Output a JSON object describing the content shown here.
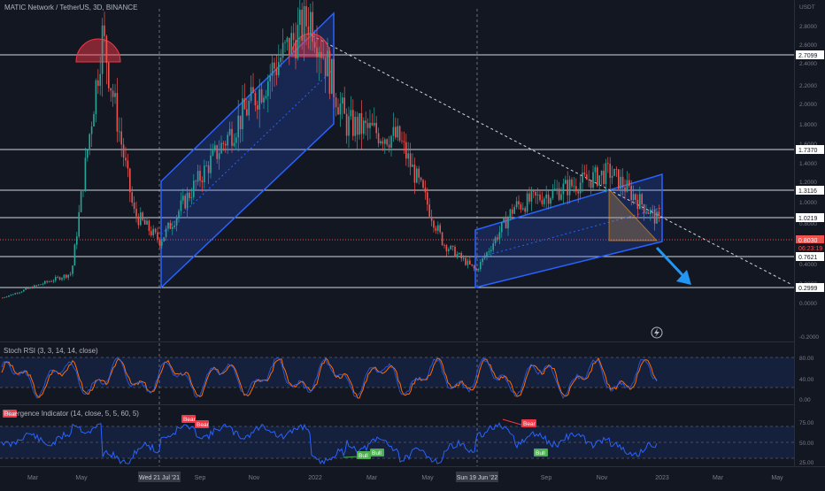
{
  "header": {
    "title": "MATIC Network / TetherUS, 3D, BINANCE"
  },
  "colors": {
    "background": "#131722",
    "up": "#26a69a",
    "down": "#ef5350",
    "channel": "#2962ff",
    "level_line": "#d1d4dc",
    "rsi_k": "#2962ff",
    "rsi_d": "#ff6d00",
    "div_line": "#2962ff",
    "bear_label": "#f23645",
    "bull_label": "#4caf50"
  },
  "price_axis": {
    "currency": "USDT",
    "ticks": [
      "2.8000",
      "2.6000",
      "2.4000",
      "2.2000",
      "2.0000",
      "1.8000",
      "1.6000",
      "1.4000",
      "1.2000",
      "1.0000",
      "0.8000",
      "0.6000",
      "0.4000",
      "0.2000",
      "0.0000",
      "-0.2000"
    ],
    "price_labels": [
      {
        "text": "2.7099",
        "kind": "level"
      },
      {
        "text": "1.7370",
        "kind": "level"
      },
      {
        "text": "1.3116",
        "kind": "level"
      },
      {
        "text": "1.0219",
        "kind": "level"
      },
      {
        "text": "0.8030",
        "kind": "current"
      },
      {
        "text": "06:23:19",
        "kind": "countdown"
      },
      {
        "text": "0.7621",
        "kind": "level"
      },
      {
        "text": "0.2999",
        "kind": "level"
      }
    ]
  },
  "time_axis": {
    "ticks": [
      "Mar",
      "May",
      "Wed 21 Jul '21",
      "Sep",
      "Nov",
      "2022",
      "Mar",
      "May",
      "Sun 19 Jun '22",
      "Sep",
      "Nov",
      "2023",
      "Mar",
      "May"
    ],
    "highlighted": [
      "Wed 21 Jul '21",
      "Sun 19 Jun '22"
    ]
  },
  "panes": {
    "stoch": {
      "title": "Stoch RSI (3, 3, 14, 14, close)",
      "ticks": [
        "80.00",
        "40.00",
        "0.00"
      ]
    },
    "divergence": {
      "title": "Divergence Indicator (14, close, 5, 5, 60, 5)",
      "ticks": [
        "75.00",
        "50.00",
        "25.00"
      ],
      "labels": [
        "Bear",
        "Bear",
        "Bear",
        "Bull",
        "Bull",
        "Bull"
      ]
    }
  },
  "chart_data": [
    {
      "type": "candlestick",
      "title": "MATIC Network / TetherUS, 3D, BINANCE",
      "ylim": [
        -0.2,
        2.9
      ],
      "horizontal_levels": [
        2.7099,
        1.737,
        1.3116,
        1.0219,
        0.7621,
        0.2999
      ],
      "current_price": 0.803,
      "key_prices": [
        {
          "date": "Feb '21",
          "price": 0.05
        },
        {
          "date": "Apr '21",
          "price": 0.3
        },
        {
          "date": "May '21",
          "price": 2.7
        },
        {
          "date": "Jun '21",
          "price": 0.9
        },
        {
          "date": "Jul '21",
          "price": 0.62
        },
        {
          "date": "Sep '21",
          "price": 1.45
        },
        {
          "date": "Dec '21",
          "price": 2.9
        },
        {
          "date": "Jan '22",
          "price": 1.8
        },
        {
          "date": "Mar '22",
          "price": 1.65
        },
        {
          "date": "May '22",
          "price": 0.6
        },
        {
          "date": "Jun '22",
          "price": 0.33
        },
        {
          "date": "Aug '22",
          "price": 0.95
        },
        {
          "date": "Nov '22",
          "price": 1.3
        },
        {
          "date": "Dec '22",
          "price": 0.8
        }
      ]
    },
    {
      "type": "line",
      "title": "Stoch RSI (3, 3, 14, 14, close)",
      "ylim": [
        0,
        100
      ],
      "bands": [
        80,
        20
      ]
    },
    {
      "type": "line",
      "title": "Divergence Indicator (14, close, 5, 5, 60, 5)",
      "ylim": [
        20,
        85
      ],
      "levels": [
        70,
        50,
        30
      ]
    }
  ]
}
